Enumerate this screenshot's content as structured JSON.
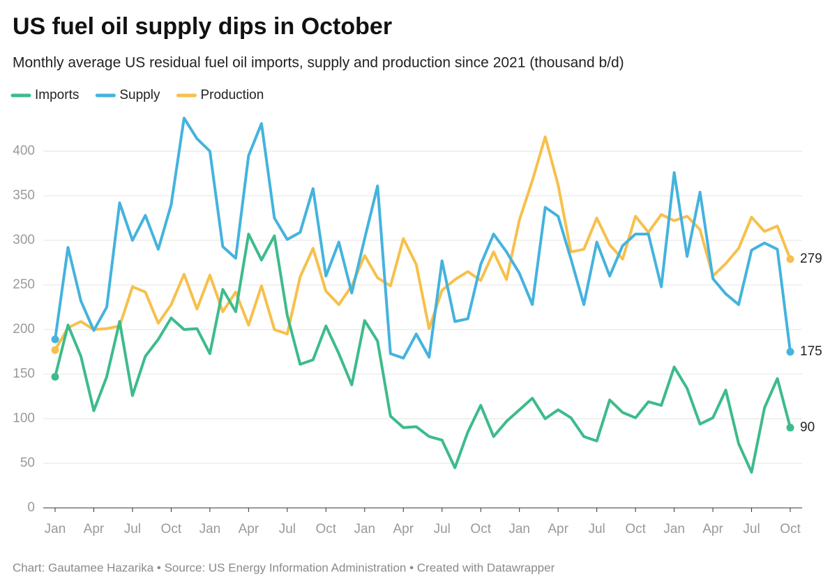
{
  "chart_data": {
    "type": "line",
    "title": "US fuel oil supply dips in October",
    "subtitle": "Monthly average US residual fuel oil imports, supply and production since 2021 (thousand b/d)",
    "footer": "Chart: Gautamee Hazarika • Source: US Energy Information Administration  • Created with Datawrapper",
    "categories": [
      "Jan",
      null,
      null,
      "Apr",
      null,
      null,
      "Jul",
      null,
      null,
      "Oct",
      null,
      null,
      "Jan",
      null,
      null,
      "Apr",
      null,
      null,
      "Jul",
      null,
      null,
      "Oct",
      null,
      null,
      "Jan",
      null,
      null,
      "Apr",
      null,
      null,
      "Jul",
      null,
      null,
      "Oct",
      null,
      null,
      "Jan",
      null,
      null,
      "Apr",
      null,
      null,
      "Jul",
      null,
      null,
      "Oct",
      null,
      null,
      "Jan",
      null,
      null,
      "Apr",
      null,
      null,
      "Jul",
      null,
      null,
      "Oct"
    ],
    "series": [
      {
        "name": "Imports",
        "color": "#3dbb8b",
        "values": [
          147,
          205,
          170,
          109,
          147,
          209,
          126,
          170,
          189,
          213,
          200,
          201,
          173,
          245,
          220,
          307,
          278,
          305,
          216,
          161,
          166,
          204,
          173,
          138,
          210,
          187,
          103,
          90,
          91,
          80,
          76,
          45,
          85,
          115,
          80,
          97,
          110,
          123,
          100,
          110,
          101,
          80,
          75,
          121,
          107,
          101,
          119,
          115,
          158,
          134,
          94,
          101,
          132,
          72,
          40,
          112,
          145,
          90
        ]
      },
      {
        "name": "Supply",
        "color": "#44b3dd",
        "values": [
          189,
          292,
          232,
          199,
          225,
          342,
          300,
          328,
          290,
          340,
          437,
          414,
          400,
          293,
          280,
          395,
          431,
          325,
          301,
          309,
          358,
          260,
          298,
          241,
          302,
          361,
          173,
          168,
          195,
          169,
          277,
          209,
          212,
          273,
          307,
          287,
          263,
          228,
          337,
          327,
          279,
          228,
          298,
          260,
          294,
          307,
          307,
          248,
          376,
          282,
          354,
          257,
          240,
          228,
          289,
          297,
          290,
          175
        ]
      },
      {
        "name": "Production",
        "color": "#f7c04c",
        "values": [
          177,
          202,
          209,
          200,
          201,
          204,
          248,
          242,
          207,
          228,
          262,
          223,
          261,
          220,
          242,
          205,
          249,
          200,
          195,
          259,
          291,
          243,
          228,
          249,
          283,
          258,
          249,
          302,
          273,
          201,
          244,
          256,
          265,
          255,
          287,
          256,
          323,
          367,
          416,
          362,
          287,
          290,
          325,
          295,
          279,
          327,
          309,
          329,
          322,
          327,
          312,
          260,
          274,
          291,
          326,
          310,
          316,
          279
        ]
      }
    ],
    "ylim": [
      0,
      440
    ],
    "yticks": [
      0,
      50,
      100,
      150,
      200,
      250,
      300,
      350,
      400
    ],
    "grid": true
  }
}
